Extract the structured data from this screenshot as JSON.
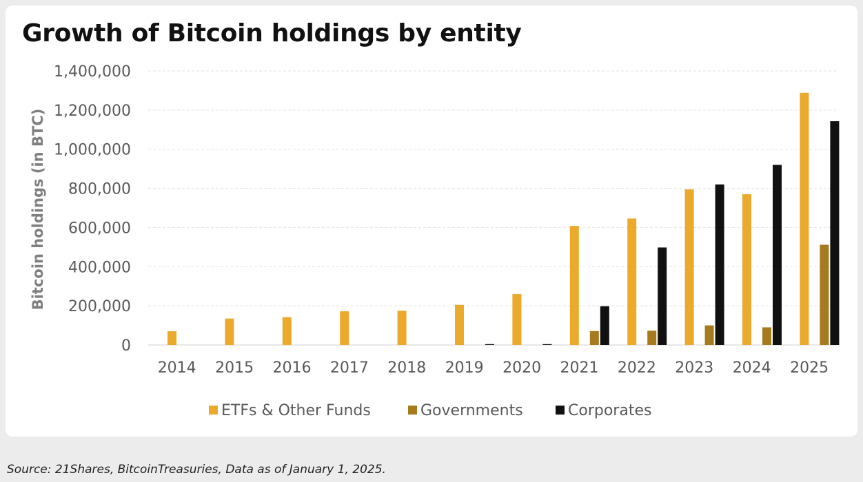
{
  "chart_data": {
    "type": "bar",
    "title": "Growth of Bitcoin holdings by entity",
    "xlabel": "",
    "ylabel": "Bitcoin holdings (in BTC)",
    "ylim": [
      0,
      1400000
    ],
    "yticks": [
      "0",
      "200,000",
      "400,000",
      "600,000",
      "800,000",
      "1,000,000",
      "1,200,000",
      "1,400,000"
    ],
    "grid": true,
    "legend_position": "bottom",
    "categories": [
      "2014",
      "2015",
      "2016",
      "2017",
      "2018",
      "2019",
      "2020",
      "2021",
      "2022",
      "2023",
      "2024",
      "2025"
    ],
    "series": [
      {
        "name": "ETFs & Other Funds",
        "color": "#EBAA2B",
        "values": [
          70000,
          135000,
          142000,
          172000,
          175000,
          205000,
          260000,
          608000,
          646000,
          795000,
          770000,
          1288000
        ]
      },
      {
        "name": "Governments",
        "color": "#A57B1E",
        "values": [
          0,
          0,
          0,
          0,
          0,
          0,
          0,
          71000,
          73000,
          100000,
          90000,
          512000
        ]
      },
      {
        "name": "Corporates",
        "color": "#111111",
        "values": [
          0,
          0,
          0,
          0,
          0,
          3000,
          4000,
          198000,
          498000,
          820000,
          920000,
          1143000
        ]
      }
    ]
  },
  "source": "Source: 21Shares, BitcoinTreasuries, Data as of January 1, 2025."
}
